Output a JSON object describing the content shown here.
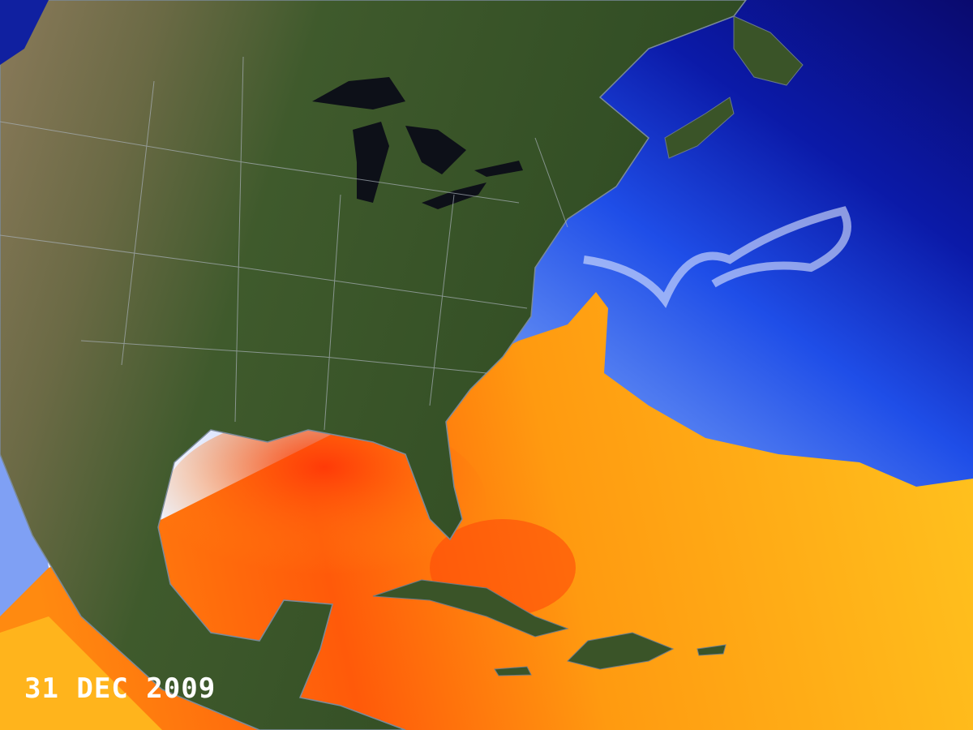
{
  "date_label": "31 DEC 2009"
}
